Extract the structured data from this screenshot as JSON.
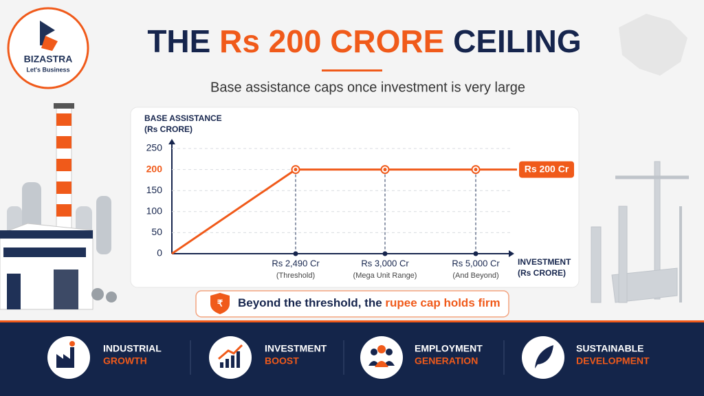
{
  "logo": {
    "name": "BIZASTRA",
    "tagline": "Let's Business"
  },
  "header": {
    "title_parts": [
      "THE ",
      "Rs 200 CRORE",
      " CEILING"
    ],
    "subtitle": "Base assistance caps once investment is very large"
  },
  "chart_data": {
    "type": "line",
    "y_label": [
      "BASE ASSISTANCE",
      "(Rs CRORE)"
    ],
    "x_label": [
      "INVESTMENT",
      "(Rs CRORE)"
    ],
    "categories": [
      null,
      "Rs 2,490 Cr",
      "Rs 3,000 Cr",
      "Rs 5,000 Cr"
    ],
    "category_notes": [
      null,
      "(Threshold)",
      "(Mega Unit Range)",
      "(And Beyond)"
    ],
    "values": [
      0,
      200,
      200,
      200
    ],
    "color": "#f05a1a",
    "ylim": [
      0,
      250
    ],
    "yticks": [
      0,
      50,
      100,
      150,
      200,
      250
    ],
    "grid": true,
    "cap_label": "Rs 200 Cr"
  },
  "banner": {
    "parts": [
      "Beyond the threshold, the ",
      "rupee cap holds firm"
    ]
  },
  "footer": {
    "items": [
      {
        "line1": "INDUSTRIAL",
        "line2": "GROWTH"
      },
      {
        "line1": "INVESTMENT",
        "line2": "BOOST"
      },
      {
        "line1": "EMPLOYMENT",
        "line2": "GENERATION"
      },
      {
        "line1": "SUSTAINABLE",
        "line2": "DEVELOPMENT"
      }
    ]
  }
}
